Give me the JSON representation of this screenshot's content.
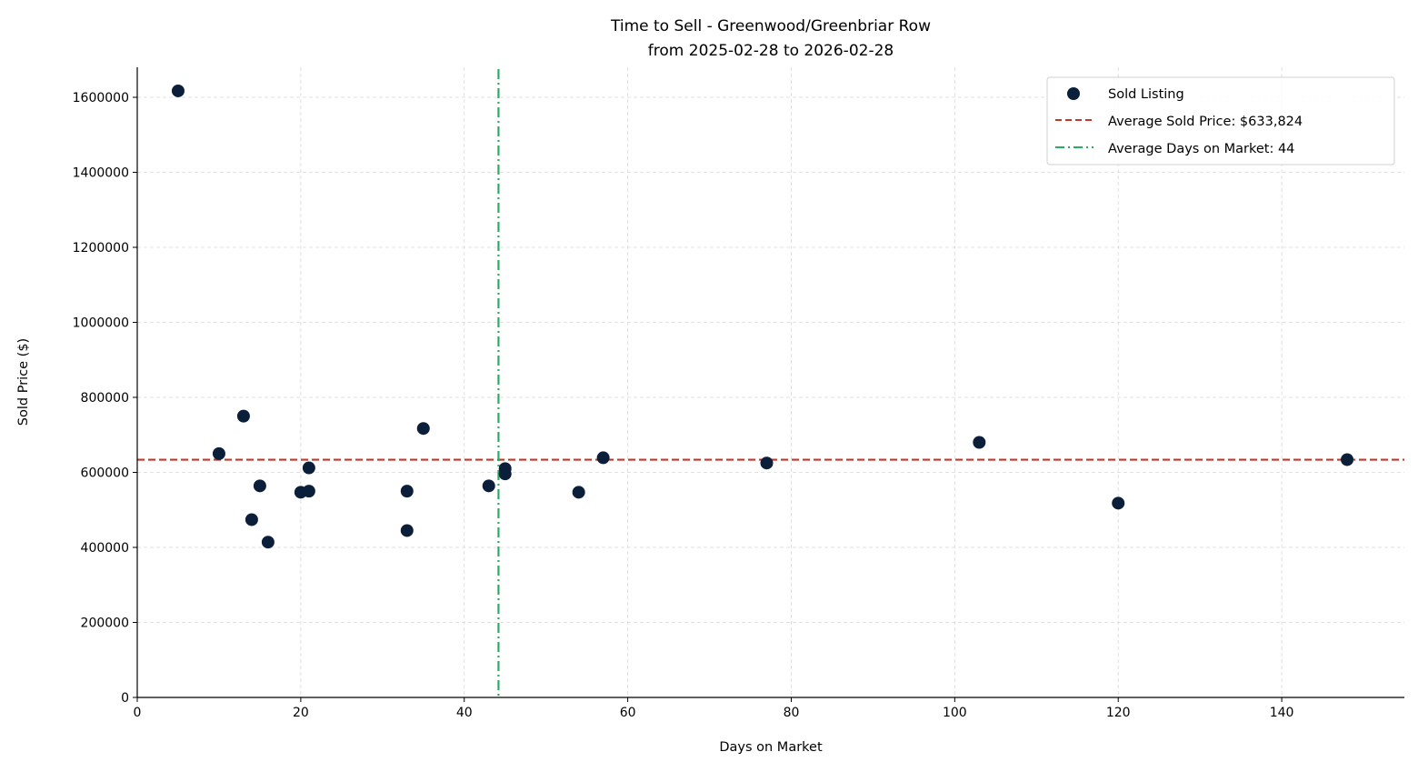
{
  "chart_data": {
    "type": "scatter",
    "title": "Time to Sell - Greenwood/Greenbriar Row",
    "subtitle": "from 2025-02-28 to 2026-02-28",
    "xlabel": "Days on Market",
    "ylabel": "Sold Price ($)",
    "xlim": [
      0,
      155
    ],
    "ylim": [
      0,
      1680000
    ],
    "xticks": [
      0,
      20,
      40,
      60,
      80,
      100,
      120,
      140
    ],
    "yticks": [
      0,
      200000,
      400000,
      600000,
      800000,
      1000000,
      1200000,
      1400000,
      1600000
    ],
    "grid": true,
    "legend_position": "top-right",
    "series": [
      {
        "name": "Sold Listing",
        "color": "#0b1f3a",
        "points": [
          [
            5,
            1617000
          ],
          [
            10,
            650000
          ],
          [
            13,
            750000
          ],
          [
            14,
            474000
          ],
          [
            15,
            564000
          ],
          [
            16,
            414000
          ],
          [
            20,
            547000
          ],
          [
            21,
            612000
          ],
          [
            21,
            550000
          ],
          [
            33,
            550000
          ],
          [
            33,
            445000
          ],
          [
            35,
            717000
          ],
          [
            43,
            564000
          ],
          [
            45,
            610000
          ],
          [
            45,
            596000
          ],
          [
            54,
            547000
          ],
          [
            57,
            639000
          ],
          [
            77,
            625000
          ],
          [
            103,
            680000
          ],
          [
            120,
            518000
          ],
          [
            148,
            634000
          ]
        ]
      }
    ],
    "reference_lines": [
      {
        "name": "Average Sold Price: $633,824",
        "orientation": "horizontal",
        "value": 633824,
        "style": "dashed",
        "color": "#c0392b"
      },
      {
        "name": "Average Days on Market: 44",
        "orientation": "vertical",
        "value": 44.19,
        "style": "dashdot",
        "color": "#27ae60"
      }
    ]
  }
}
